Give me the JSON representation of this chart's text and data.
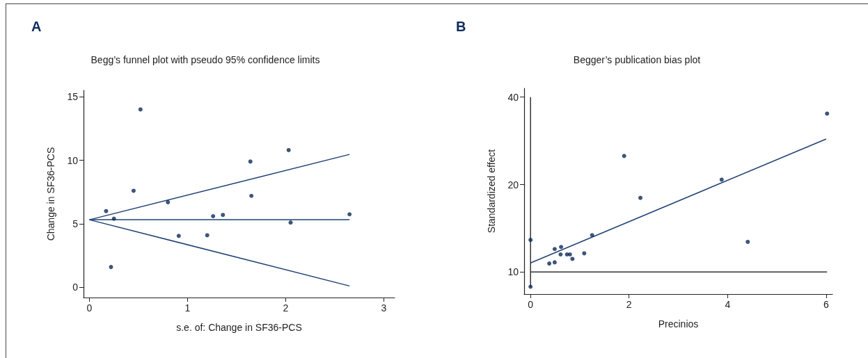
{
  "chart_data": [
    {
      "type": "scatter",
      "title": "Begg’s funnel plot with pseudo 95% confidence limits",
      "xlabel": "s.e. of: Change in SF36-PCS",
      "ylabel": "Change in SF36-PCS",
      "annotations": [
        "A"
      ],
      "xlim": [
        -0.06,
        3.11
      ],
      "ylim": [
        -0.8,
        15.5
      ],
      "xticks": [
        0,
        1,
        2,
        3
      ],
      "yticks": [
        0,
        5,
        10,
        15
      ],
      "grid": false,
      "series": [
        {
          "marker": "circle",
          "color": "#0d2a57",
          "x": [
            0.17,
            0.22,
            0.25,
            0.45,
            0.52,
            0.8,
            0.91,
            1.2,
            1.26,
            1.36,
            1.64,
            1.65,
            2.03,
            2.05,
            2.65
          ],
          "values": [
            6,
            1.6,
            5.4,
            7.6,
            14,
            6.7,
            4.05,
            4.1,
            5.6,
            5.7,
            9.9,
            7.2,
            10.8,
            5.1,
            5.75
          ]
        },
        {
          "type": "line",
          "color": "#1d3f73",
          "x": [
            0,
            2.65
          ],
          "values": [
            5.32,
            10.46
          ]
        },
        {
          "type": "line",
          "color": "#1d3f73",
          "x": [
            0,
            2.65
          ],
          "values": [
            5.32,
            5.32
          ]
        },
        {
          "type": "line",
          "color": "#1d3f73",
          "x": [
            0,
            2.65
          ],
          "values": [
            5.32,
            0.11
          ]
        }
      ]
    },
    {
      "type": "scatter",
      "title": "Begger’s publication bias plot",
      "xlabel": "Precinios",
      "ylabel": "Standardized effect",
      "annotations": [
        "B"
      ],
      "log": "y",
      "xlim": [
        -0.13,
        6.13
      ],
      "ylim": [
        8.4,
        42.9
      ],
      "xticks": [
        0,
        2,
        4,
        6
      ],
      "yticks": [
        10,
        20,
        40
      ],
      "grid": false,
      "series": [
        {
          "marker": "circle",
          "color": "#0d2a57",
          "x": [
            0,
            0,
            0.38,
            0.49,
            0.49,
            0.61,
            0.62,
            0.74,
            0.8,
            0.85,
            1.09,
            1.25,
            1.9,
            2.23,
            3.88,
            4.41,
            6.02
          ],
          "values": [
            12.9,
            8.9,
            10.7,
            10.8,
            12,
            11.5,
            12.2,
            11.5,
            11.5,
            11.1,
            11.6,
            13.4,
            25.1,
            18,
            20.8,
            12.7,
            35.1
          ]
        },
        {
          "type": "line",
          "color": "#1d3f73",
          "x": [
            0,
            6
          ],
          "values": [
            10.75,
            28.7
          ]
        },
        {
          "type": "line",
          "color": "#333333",
          "x": [
            0,
            6.02
          ],
          "values": [
            10,
            10
          ]
        },
        {
          "type": "line",
          "color": "#333333",
          "x": [
            0,
            0
          ],
          "values": [
            8.9,
            40
          ]
        }
      ]
    }
  ]
}
